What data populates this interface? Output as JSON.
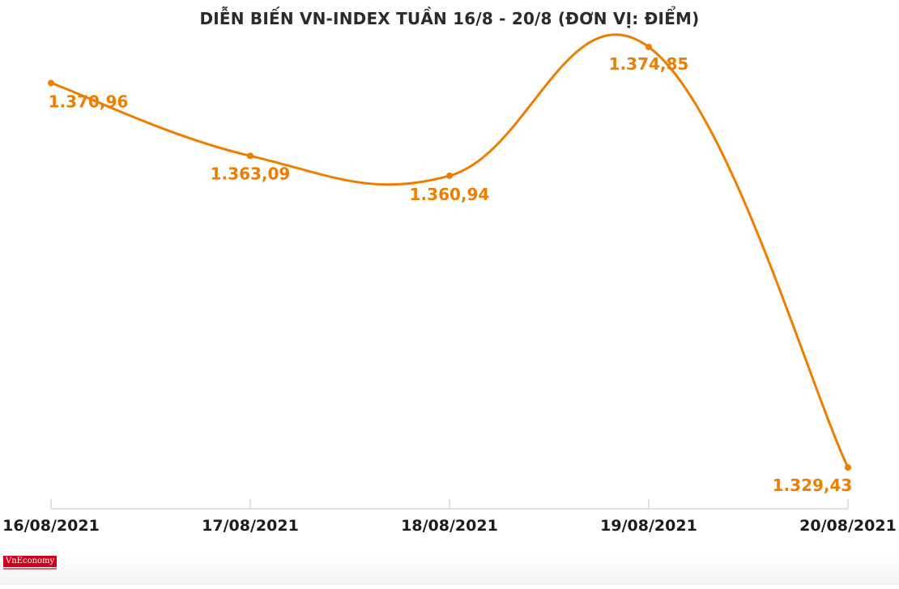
{
  "brand": {
    "logo_text": "VnEconomy"
  },
  "chart_data": {
    "type": "line",
    "title": "DIỄN BIẾN VN-INDEX TUẦN 16/8 - 20/8 (ĐƠN VỊ: ĐIỂM)",
    "xlabel": "",
    "ylabel": "",
    "categories": [
      "16/08/2021",
      "17/08/2021",
      "18/08/2021",
      "19/08/2021",
      "20/08/2021"
    ],
    "series": [
      {
        "values": [
          1370.96,
          1363.09,
          1360.94,
          1374.85,
          1329.43
        ],
        "labels": [
          "1.370,96",
          "1.363,09",
          "1.360,94",
          "1.374,85",
          "1.329,43"
        ],
        "color": "#ee7d00"
      }
    ],
    "ylim": [
      1324,
      1378
    ],
    "grid": false,
    "legend": "none",
    "smooth": true
  }
}
